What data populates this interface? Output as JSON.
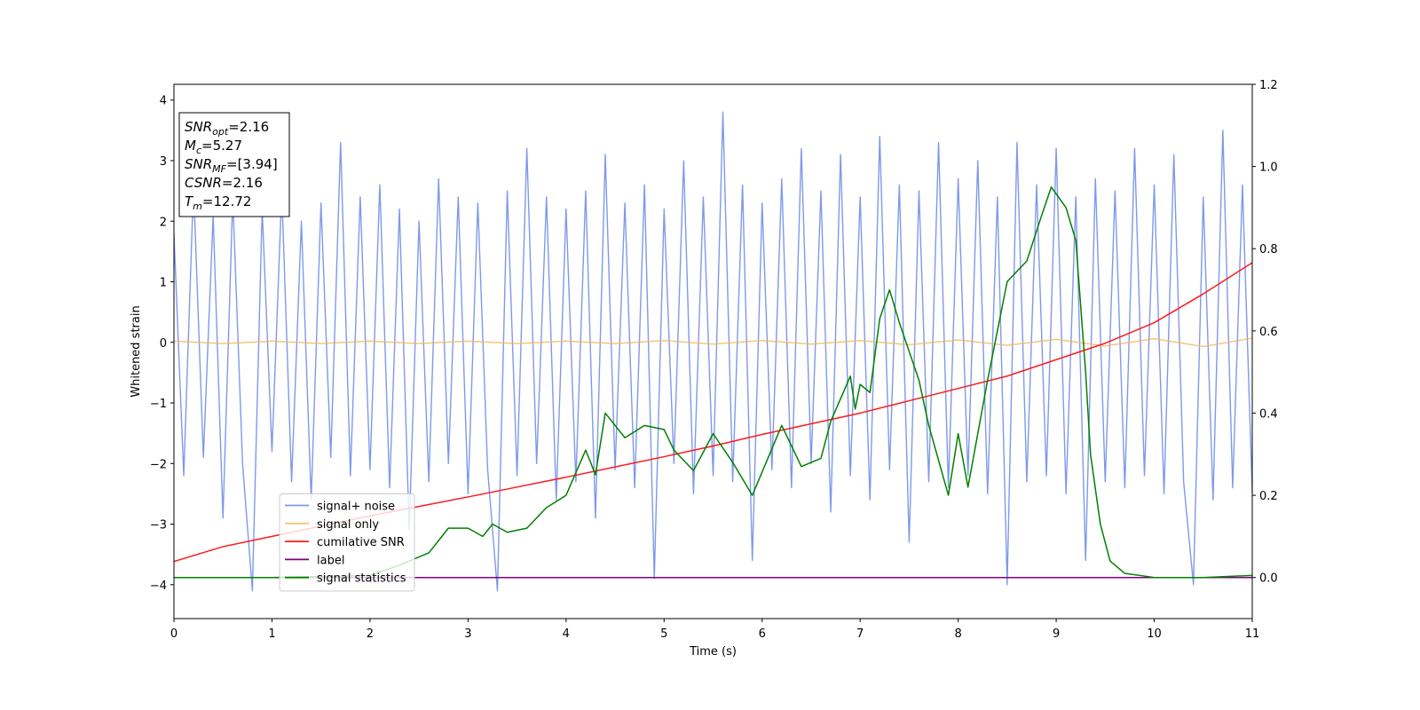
{
  "chart_data": {
    "type": "line",
    "xlabel": "Time (s)",
    "ylabel": "Whitened strain",
    "xlim": [
      0,
      11
    ],
    "xticks": [
      0,
      1,
      2,
      3,
      4,
      5,
      6,
      7,
      8,
      9,
      10,
      11
    ],
    "ylim": [
      -4.56,
      4.26
    ],
    "yticks": [
      {
        "value": -4,
        "label": "−4"
      },
      {
        "value": -3,
        "label": "−3"
      },
      {
        "value": -2,
        "label": "−2"
      },
      {
        "value": -1,
        "label": "−1"
      },
      0,
      1,
      2,
      3,
      4
    ],
    "y2lim": [
      -0.1,
      1.2
    ],
    "y2ticks": [
      {
        "value": 0,
        "label": "0.0"
      },
      0.2,
      0.4,
      0.6,
      0.8,
      {
        "value": 1,
        "label": "1.0"
      },
      1.2
    ],
    "legend": "lower left",
    "annotations": [
      {
        "name": "SNR",
        "sub": "opt",
        "rest": "=2.16"
      },
      {
        "name": "M",
        "sub": "c",
        "rest": "=5.27"
      },
      {
        "name": "SNR",
        "sub": "MF",
        "rest": "=[3.94]"
      },
      {
        "name": "CSNR",
        "sub": "",
        "rest": "=2.16"
      },
      {
        "name": "T",
        "sub": "m",
        "rest": "=12.72"
      }
    ],
    "series": [
      {
        "name": "signal+ noise",
        "color": "#7893e8",
        "x": [
          0,
          0.1,
          0.2,
          0.3,
          0.4,
          0.5,
          0.6,
          0.7,
          0.8,
          0.9,
          1,
          1.1,
          1.2,
          1.3,
          1.4,
          1.5,
          1.6,
          1.7,
          1.8,
          1.9,
          2,
          2.1,
          2.2,
          2.3,
          2.4,
          2.5,
          2.6,
          2.7,
          2.8,
          2.9,
          3,
          3.1,
          3.2,
          3.3,
          3.4,
          3.5,
          3.6,
          3.7,
          3.8,
          3.9,
          4,
          4.1,
          4.2,
          4.3,
          4.4,
          4.5,
          4.6,
          4.7,
          4.8,
          4.9,
          5,
          5.1,
          5.2,
          5.3,
          5.4,
          5.5,
          5.6,
          5.7,
          5.8,
          5.9,
          6,
          6.1,
          6.2,
          6.3,
          6.4,
          6.5,
          6.6,
          6.7,
          6.8,
          6.9,
          7,
          7.1,
          7.2,
          7.3,
          7.4,
          7.5,
          7.6,
          7.7,
          7.8,
          7.9,
          8,
          8.1,
          8.2,
          8.3,
          8.4,
          8.5,
          8.6,
          8.7,
          8.8,
          8.9,
          9,
          9.1,
          9.2,
          9.3,
          9.4,
          9.5,
          9.6,
          9.7,
          9.8,
          9.9,
          10,
          10.1,
          10.2,
          10.3,
          10.4,
          10.5,
          10.6,
          10.7,
          10.8,
          10.9,
          11
        ],
        "values": [
          1.8,
          -2.2,
          2.6,
          -1.9,
          2.1,
          -2.9,
          2.4,
          -2.0,
          -4.1,
          2.2,
          -1.8,
          2.5,
          -2.3,
          2.0,
          -2.6,
          2.3,
          -1.9,
          3.3,
          -2.2,
          2.4,
          -2.1,
          2.6,
          -2.4,
          2.2,
          -3.1,
          2.0,
          -2.3,
          2.7,
          -2.0,
          2.4,
          -2.5,
          2.3,
          -2.1,
          -4.1,
          2.5,
          -2.2,
          3.2,
          -2.0,
          2.4,
          -2.6,
          2.2,
          -2.3,
          2.5,
          -2.9,
          3.1,
          -2.1,
          2.3,
          -2.4,
          2.6,
          -3.9,
          2.2,
          -2.0,
          3.0,
          -2.5,
          2.4,
          -2.2,
          3.8,
          -2.3,
          2.6,
          -3.6,
          2.3,
          -2.1,
          2.7,
          -2.4,
          3.2,
          -2.0,
          2.5,
          -2.8,
          3.1,
          -2.2,
          2.4,
          -2.6,
          3.4,
          -2.1,
          2.6,
          -3.3,
          2.5,
          -2.3,
          3.3,
          -2.4,
          2.7,
          -2.2,
          3.0,
          -2.5,
          2.4,
          -4.0,
          3.3,
          -2.3,
          2.6,
          -2.2,
          3.2,
          -2.5,
          2.4,
          -3.6,
          2.7,
          -2.3,
          2.5,
          -2.4,
          3.2,
          -2.2,
          2.6,
          -2.5,
          3.1,
          -2.3,
          -4.0,
          2.4,
          -2.6,
          3.5,
          -2.4,
          2.6,
          -2.5
        ]
      },
      {
        "name": "signal only",
        "color": "#f5b75c",
        "x": [
          0,
          0.5,
          1,
          1.5,
          2,
          2.5,
          3,
          3.5,
          4,
          4.5,
          5,
          5.5,
          6,
          6.5,
          7,
          7.5,
          8,
          8.5,
          9,
          9.5,
          10,
          10.5,
          11
        ],
        "values": [
          0.02,
          -0.02,
          0.02,
          -0.02,
          0.02,
          -0.02,
          0.02,
          -0.02,
          0.02,
          -0.02,
          0.03,
          -0.03,
          0.03,
          -0.03,
          0.03,
          -0.04,
          0.04,
          -0.05,
          0.05,
          -0.06,
          0.06,
          -0.07,
          0.07
        ]
      },
      {
        "name": "cumilative SNR",
        "color": "#ff1a1a",
        "axis": "y2",
        "x": [
          0,
          0.5,
          1,
          1.5,
          2,
          2.5,
          3,
          3.5,
          4,
          4.5,
          5,
          5.5,
          6,
          6.5,
          7,
          7.5,
          8,
          8.5,
          9,
          9.5,
          10,
          10.5,
          11
        ],
        "values": [
          0.039,
          0.075,
          0.1,
          0.125,
          0.15,
          0.173,
          0.196,
          0.22,
          0.244,
          0.269,
          0.294,
          0.32,
          0.348,
          0.374,
          0.4,
          0.43,
          0.46,
          0.49,
          0.53,
          0.57,
          0.62,
          0.69,
          0.766
        ]
      },
      {
        "name": "label",
        "color": "#800080",
        "axis": "y2",
        "x": [
          0,
          11
        ],
        "values": [
          0,
          0
        ]
      },
      {
        "name": "signal statistics",
        "color": "#008000",
        "axis": "y2",
        "x": [
          0,
          1,
          2,
          2.3,
          2.6,
          2.8,
          3,
          3.15,
          3.25,
          3.4,
          3.6,
          3.8,
          4,
          4.2,
          4.3,
          4.4,
          4.6,
          4.8,
          5,
          5.1,
          5.3,
          5.5,
          5.7,
          5.9,
          6.2,
          6.4,
          6.6,
          6.7,
          6.9,
          6.95,
          7,
          7.1,
          7.2,
          7.3,
          7.4,
          7.6,
          7.7,
          7.9,
          8,
          8.1,
          8.3,
          8.4,
          8.5,
          8.7,
          8.85,
          8.95,
          9.1,
          9.2,
          9.3,
          9.35,
          9.45,
          9.55,
          9.7,
          10,
          10.5,
          11
        ],
        "values": [
          0,
          0,
          0.005,
          0.03,
          0.06,
          0.12,
          0.12,
          0.1,
          0.13,
          0.11,
          0.12,
          0.17,
          0.2,
          0.31,
          0.25,
          0.4,
          0.34,
          0.37,
          0.36,
          0.31,
          0.26,
          0.35,
          0.28,
          0.2,
          0.37,
          0.27,
          0.29,
          0.38,
          0.49,
          0.41,
          0.47,
          0.45,
          0.63,
          0.7,
          0.62,
          0.48,
          0.37,
          0.2,
          0.35,
          0.22,
          0.48,
          0.6,
          0.72,
          0.77,
          0.88,
          0.95,
          0.9,
          0.82,
          0.5,
          0.3,
          0.13,
          0.04,
          0.01,
          0,
          0,
          0.005
        ]
      }
    ]
  }
}
